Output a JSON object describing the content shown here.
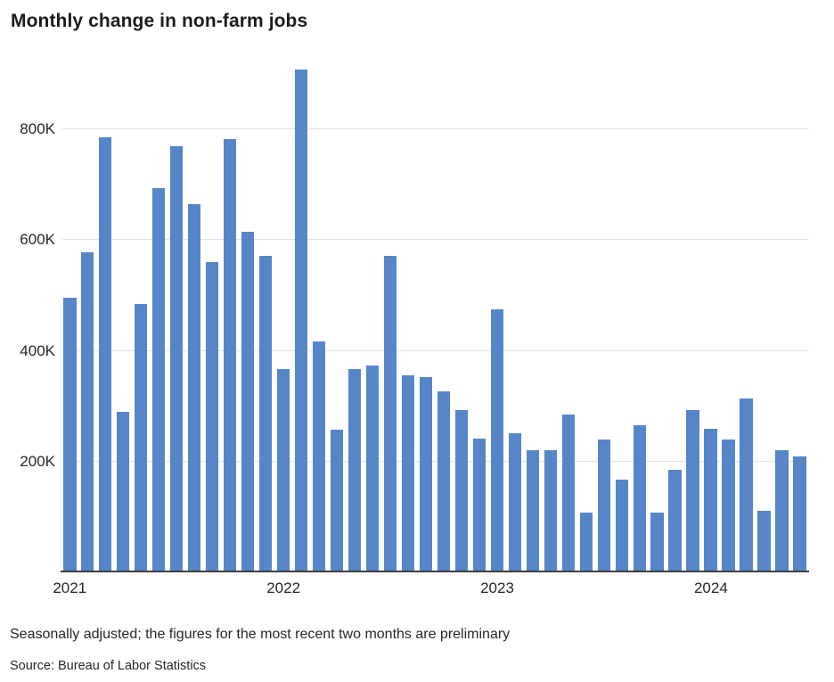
{
  "title": "Monthly change in non-farm jobs",
  "footnote": "Seasonally adjusted; the figures for the most recent two months are preliminary",
  "source": "Source: Bureau of Labor Statistics",
  "chart_data": {
    "type": "bar",
    "title": "Monthly change in non-farm jobs",
    "unit": "thousands of jobs",
    "bar_color": "#5786c8",
    "grid": true,
    "legend": false,
    "ylim": [
      0,
      940
    ],
    "y_ticks": [
      {
        "label": "200K",
        "value": 200
      },
      {
        "label": "400K",
        "value": 400
      },
      {
        "label": "600K",
        "value": 600
      },
      {
        "label": "800K",
        "value": 800
      }
    ],
    "x_ticks": [
      {
        "label": "2021",
        "month_index": 0
      },
      {
        "label": "2022",
        "month_index": 12
      },
      {
        "label": "2023",
        "month_index": 24
      },
      {
        "label": "2024",
        "month_index": 36
      }
    ],
    "categories": [
      "Jan 2021",
      "Feb 2021",
      "Mar 2021",
      "Apr 2021",
      "May 2021",
      "Jun 2021",
      "Jul 2021",
      "Aug 2021",
      "Sep 2021",
      "Oct 2021",
      "Nov 2021",
      "Dec 2021",
      "Jan 2022",
      "Feb 2022",
      "Mar 2022",
      "Apr 2022",
      "May 2022",
      "Jun 2022",
      "Jul 2022",
      "Aug 2022",
      "Sep 2022",
      "Oct 2022",
      "Nov 2022",
      "Dec 2022",
      "Jan 2023",
      "Feb 2023",
      "Mar 2023",
      "Apr 2023",
      "May 2023",
      "Jun 2023",
      "Jul 2023",
      "Aug 2023",
      "Sep 2023",
      "Oct 2023",
      "Nov 2023",
      "Dec 2023",
      "Jan 2024",
      "Feb 2024",
      "Mar 2024",
      "Apr 2024",
      "May 2024",
      "Jun 2024"
    ],
    "values": [
      492,
      575,
      782,
      286,
      481,
      690,
      767,
      661,
      557,
      779,
      611,
      568,
      364,
      904,
      414,
      254,
      364,
      370,
      568,
      352,
      350,
      324,
      290,
      239,
      472,
      248,
      217,
      217,
      281,
      105,
      236,
      165,
      262,
      105,
      182,
      290,
      256,
      236,
      310,
      108,
      218,
      206
    ]
  }
}
